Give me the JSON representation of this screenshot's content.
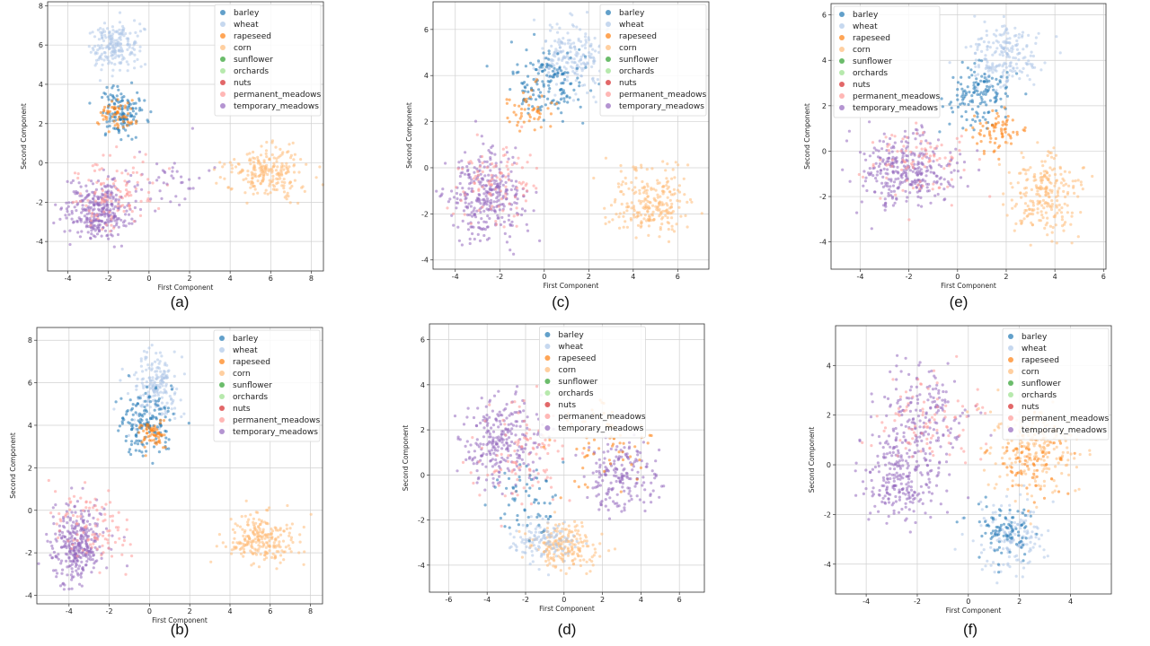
{
  "legend": {
    "entries": [
      "barley",
      "wheat",
      "rapeseed",
      "corn",
      "sunflower",
      "orchards",
      "nuts",
      "permanent_meadows",
      "temporary_meadows"
    ],
    "colors": [
      "#1f77b4",
      "#aec7e8",
      "#ff7f0e",
      "#ffbb78",
      "#2ca02c",
      "#98df8a",
      "#d62728",
      "#ff9896",
      "#9467bd"
    ]
  },
  "chart_data": [
    {
      "type": "scatter",
      "caption": "(a)",
      "xlabel": "First Component",
      "ylabel": "Second Component",
      "xlim": [
        -5,
        8.6
      ],
      "ylim": [
        -5.5,
        8.2
      ],
      "xticks": [
        -4,
        -2,
        0,
        2,
        4,
        6,
        8
      ],
      "yticks": [
        -4,
        -2,
        0,
        2,
        4,
        6,
        8
      ],
      "grid": true,
      "legend_position": "top-right",
      "clusters": [
        {
          "series": "temporary_meadows",
          "center": [
            -2.5,
            -2.4
          ],
          "spread": [
            0.8,
            0.75
          ],
          "n": 320
        },
        {
          "series": "permanent_meadows",
          "center": [
            -1.8,
            -1.5
          ],
          "spread": [
            1.1,
            0.9
          ],
          "n": 110
        },
        {
          "series": "wheat",
          "center": [
            -1.7,
            6.0
          ],
          "spread": [
            0.6,
            0.6
          ],
          "n": 200
        },
        {
          "series": "barley",
          "center": [
            -1.4,
            2.6
          ],
          "spread": [
            0.55,
            0.6
          ],
          "n": 130
        },
        {
          "series": "rapeseed",
          "center": [
            -1.6,
            2.4
          ],
          "spread": [
            0.4,
            0.4
          ],
          "n": 60
        },
        {
          "series": "corn",
          "center": [
            5.8,
            -0.5
          ],
          "spread": [
            1.0,
            0.65
          ],
          "n": 230
        },
        {
          "series": "temporary_meadows",
          "center": [
            1.0,
            -1.0
          ],
          "spread": [
            1.2,
            0.8
          ],
          "n": 40
        }
      ]
    },
    {
      "type": "scatter",
      "caption": "(c)",
      "xlabel": "First Component",
      "ylabel": "Second Component",
      "xlim": [
        -5,
        7.4
      ],
      "ylim": [
        -4.4,
        7.2
      ],
      "xticks": [
        -4,
        -2,
        0,
        2,
        4,
        6
      ],
      "yticks": [
        -4,
        -2,
        0,
        2,
        4,
        6
      ],
      "grid": true,
      "legend_position": "top-right",
      "clusters": [
        {
          "series": "temporary_meadows",
          "center": [
            -2.7,
            -1.3
          ],
          "spread": [
            0.85,
            0.9
          ],
          "n": 320
        },
        {
          "series": "permanent_meadows",
          "center": [
            -2.2,
            -0.6
          ],
          "spread": [
            1.0,
            0.9
          ],
          "n": 100
        },
        {
          "series": "wheat",
          "center": [
            1.2,
            4.8
          ],
          "spread": [
            0.8,
            0.8
          ],
          "n": 200
        },
        {
          "series": "barley",
          "center": [
            0.2,
            3.6
          ],
          "spread": [
            0.8,
            0.7
          ],
          "n": 150
        },
        {
          "series": "rapeseed",
          "center": [
            -0.8,
            2.5
          ],
          "spread": [
            0.6,
            0.5
          ],
          "n": 50
        },
        {
          "series": "corn",
          "center": [
            4.8,
            -1.5
          ],
          "spread": [
            0.9,
            0.75
          ],
          "n": 240
        }
      ]
    },
    {
      "type": "scatter",
      "caption": "(e)",
      "xlabel": "First Component",
      "ylabel": "Second Component",
      "xlim": [
        -5.2,
        6.1
      ],
      "ylim": [
        -5.2,
        6.5
      ],
      "xticks": [
        -4,
        -2,
        0,
        2,
        4,
        6
      ],
      "yticks": [
        -4,
        -2,
        0,
        2,
        4,
        6
      ],
      "grid": true,
      "legend_position": "top-left",
      "clusters": [
        {
          "series": "temporary_meadows",
          "center": [
            -2.1,
            -0.8
          ],
          "spread": [
            0.95,
            0.75
          ],
          "n": 320
        },
        {
          "series": "permanent_meadows",
          "center": [
            -1.5,
            -0.4
          ],
          "spread": [
            1.0,
            0.8
          ],
          "n": 90
        },
        {
          "series": "wheat",
          "center": [
            1.9,
            4.2
          ],
          "spread": [
            0.75,
            0.75
          ],
          "n": 200
        },
        {
          "series": "barley",
          "center": [
            0.9,
            2.5
          ],
          "spread": [
            0.65,
            0.7
          ],
          "n": 140
        },
        {
          "series": "rapeseed",
          "center": [
            1.7,
            0.9
          ],
          "spread": [
            0.5,
            0.45
          ],
          "n": 70
        },
        {
          "series": "corn",
          "center": [
            3.6,
            -2.0
          ],
          "spread": [
            0.7,
            0.9
          ],
          "n": 240
        }
      ]
    },
    {
      "type": "scatter",
      "caption": "(b)",
      "xlabel": "First Component",
      "ylabel": "Second Component",
      "xlim": [
        -5.6,
        8.6
      ],
      "ylim": [
        -4.4,
        8.6
      ],
      "xticks": [
        -4,
        -2,
        0,
        2,
        4,
        6,
        8
      ],
      "yticks": [
        -4,
        -2,
        0,
        2,
        4,
        6,
        8
      ],
      "grid": true,
      "legend_position": "top-right",
      "clusters": [
        {
          "series": "temporary_meadows",
          "center": [
            -3.6,
            -1.6
          ],
          "spread": [
            0.7,
            0.9
          ],
          "n": 320
        },
        {
          "series": "permanent_meadows",
          "center": [
            -2.8,
            -0.8
          ],
          "spread": [
            1.0,
            0.95
          ],
          "n": 100
        },
        {
          "series": "wheat",
          "center": [
            0.3,
            5.8
          ],
          "spread": [
            0.6,
            0.8
          ],
          "n": 200
        },
        {
          "series": "barley",
          "center": [
            -0.3,
            4.2
          ],
          "spread": [
            0.7,
            0.8
          ],
          "n": 150
        },
        {
          "series": "rapeseed",
          "center": [
            0.1,
            3.6
          ],
          "spread": [
            0.4,
            0.4
          ],
          "n": 60
        },
        {
          "series": "corn",
          "center": [
            5.6,
            -1.4
          ],
          "spread": [
            0.85,
            0.6
          ],
          "n": 240
        }
      ]
    },
    {
      "type": "scatter",
      "caption": "(d)",
      "xlabel": "First Component",
      "ylabel": "Second Component",
      "xlim": [
        -7,
        7.3
      ],
      "ylim": [
        -5.2,
        6.7
      ],
      "xticks": [
        -6,
        -4,
        -2,
        0,
        2,
        4,
        6
      ],
      "yticks": [
        -4,
        -2,
        0,
        2,
        4,
        6
      ],
      "grid": true,
      "legend_position": "top-center",
      "clusters": [
        {
          "series": "temporary_meadows",
          "center": [
            -3.3,
            1.4
          ],
          "spread": [
            1.0,
            1.0
          ],
          "n": 260
        },
        {
          "series": "temporary_meadows",
          "center": [
            3.0,
            0.0
          ],
          "spread": [
            0.8,
            0.8
          ],
          "n": 180
        },
        {
          "series": "permanent_meadows",
          "center": [
            -2.4,
            1.0
          ],
          "spread": [
            1.2,
            1.1
          ],
          "n": 100
        },
        {
          "series": "corn",
          "center": [
            0.0,
            -3.2
          ],
          "spread": [
            0.85,
            0.5
          ],
          "n": 200
        },
        {
          "series": "wheat",
          "center": [
            -1.0,
            -3.0
          ],
          "spread": [
            0.8,
            0.5
          ],
          "n": 120
        },
        {
          "series": "barley",
          "center": [
            -2.0,
            -1.0
          ],
          "spread": [
            0.9,
            0.9
          ],
          "n": 60
        },
        {
          "series": "rapeseed",
          "center": [
            2.0,
            1.5
          ],
          "spread": [
            1.2,
            1.0
          ],
          "n": 70
        }
      ]
    },
    {
      "type": "scatter",
      "caption": "(f)",
      "xlabel": "First Component",
      "ylabel": "Second Component",
      "xlim": [
        -5.2,
        5.6
      ],
      "ylim": [
        -5.2,
        5.6
      ],
      "xticks": [
        -4,
        -2,
        0,
        2,
        4
      ],
      "yticks": [
        -4,
        -2,
        0,
        2,
        4
      ],
      "grid": true,
      "legend_position": "top-right",
      "clusters": [
        {
          "series": "temporary_meadows",
          "center": [
            -2.6,
            -0.6
          ],
          "spread": [
            0.8,
            0.8
          ],
          "n": 230
        },
        {
          "series": "temporary_meadows",
          "center": [
            -1.9,
            2.0
          ],
          "spread": [
            0.9,
            0.9
          ],
          "n": 180
        },
        {
          "series": "permanent_meadows",
          "center": [
            -1.6,
            1.8
          ],
          "spread": [
            1.0,
            1.0
          ],
          "n": 90
        },
        {
          "series": "corn",
          "center": [
            2.6,
            0.6
          ],
          "spread": [
            0.85,
            0.85
          ],
          "n": 230
        },
        {
          "series": "rapeseed",
          "center": [
            2.3,
            0.3
          ],
          "spread": [
            0.8,
            0.8
          ],
          "n": 70
        },
        {
          "series": "wheat",
          "center": [
            1.7,
            -3.0
          ],
          "spread": [
            0.7,
            0.65
          ],
          "n": 160
        },
        {
          "series": "barley",
          "center": [
            1.4,
            -2.6
          ],
          "spread": [
            0.6,
            0.6
          ],
          "n": 90
        }
      ]
    }
  ]
}
